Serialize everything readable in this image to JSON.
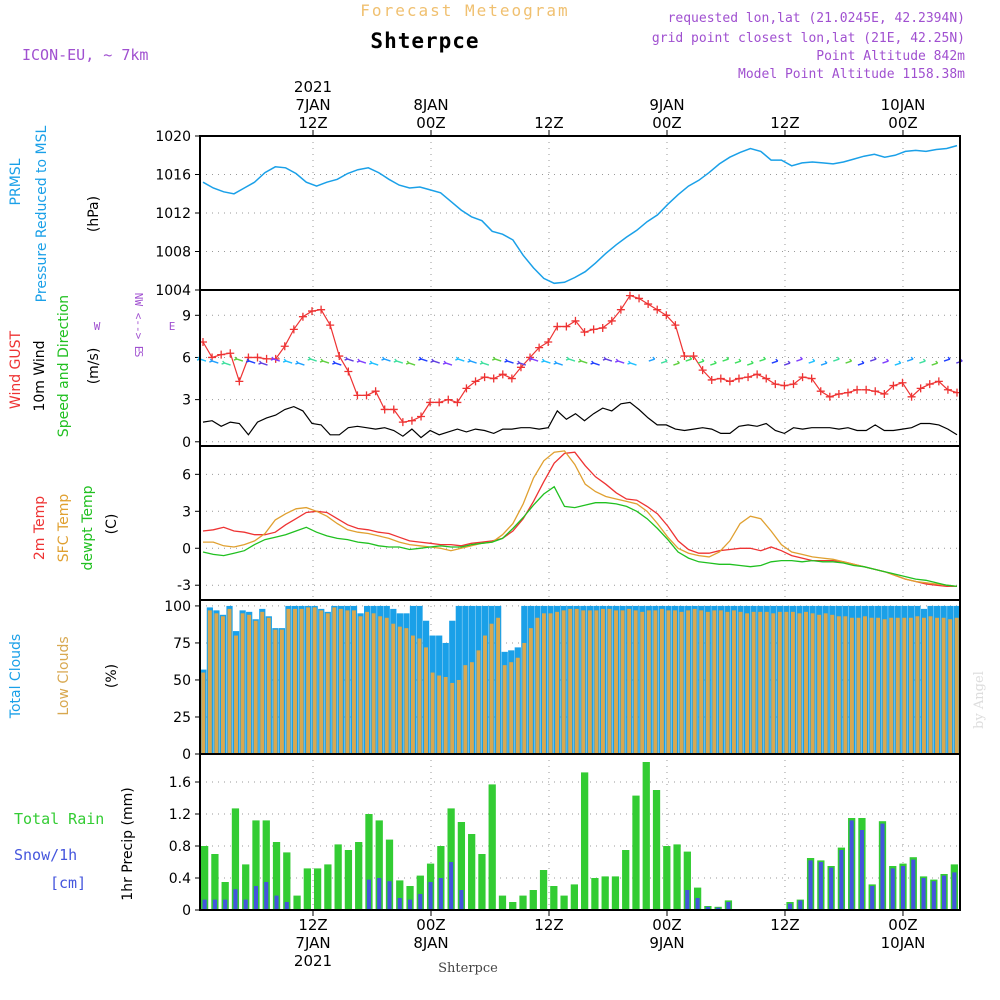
{
  "header": {
    "title": "Forecast Meteogram",
    "location": "Shterpce",
    "model": "ICON-EU, ~ 7km",
    "requested": "requested lon,lat (21.0245E, 42.2394N)",
    "gridpoint": "grid point closest lon,lat (21E, 42.25N)",
    "point_alt": "Point Altitude 842m",
    "model_alt": "Model Point Altitude 1158.38m",
    "footer_location": "Shterpce",
    "credit": "by Angel"
  },
  "colors": {
    "pressure": "#1aa0e8",
    "gust": "#ee3333",
    "wind": "#000000",
    "t2m": "#ee3333",
    "sfc": "#e0a030",
    "dew": "#20c020",
    "total_clouds": "#1aa0e8",
    "low_clouds": "#d8a850",
    "rain": "#33cc33",
    "snow": "#4455dd",
    "label_purple": "#a050d0"
  },
  "top_axis": [
    {
      "h": 0,
      "lines": [
        "2021",
        "7JAN",
        "12Z"
      ]
    },
    {
      "h": 12,
      "lines": [
        "8JAN",
        "00Z"
      ]
    },
    {
      "h": 24,
      "lines": [
        "12Z"
      ]
    },
    {
      "h": 36,
      "lines": [
        "9JAN",
        "00Z"
      ]
    },
    {
      "h": 48,
      "lines": [
        "12Z"
      ]
    },
    {
      "h": 60,
      "lines": [
        "10JAN",
        "00Z"
      ]
    }
  ],
  "bottom_axis": [
    {
      "h": 0,
      "lines": [
        "12Z",
        "7JAN",
        "2021"
      ]
    },
    {
      "h": 12,
      "lines": [
        "00Z",
        "8JAN"
      ]
    },
    {
      "h": 24,
      "lines": [
        "12Z"
      ]
    },
    {
      "h": 36,
      "lines": [
        "00Z",
        "9JAN"
      ]
    },
    {
      "h": 48,
      "lines": [
        "12Z"
      ]
    },
    {
      "h": 60,
      "lines": [
        "00Z",
        "10JAN"
      ]
    }
  ],
  "panel_labels": {
    "pressure": [
      "PRMSL",
      "Pressure Reduced to MSL",
      "(hPa)"
    ],
    "wind": [
      "Wind GUST",
      "10m Wind",
      "Speed and Direction",
      "(m/s)"
    ],
    "wind_compass": [
      "N",
      "<",
      "-",
      "-",
      ">",
      "S",
      "W <--> E",
      "W",
      "E"
    ],
    "temp": [
      "2m Temp",
      "SFC Temp",
      "dewpt Temp",
      "(C)"
    ],
    "clouds": [
      "Total Clouds",
      "Low Clouds",
      "(%)"
    ],
    "precip": [
      "Total Rain",
      "Snow/1h",
      "[cm]",
      "1hr Precip (mm)"
    ]
  },
  "chart_data": [
    {
      "type": "line",
      "title": "PRMSL Pressure Reduced to MSL",
      "ylabel": "(hPa)",
      "ylim": [
        1004,
        1020
      ],
      "yticks": [
        1004,
        1008,
        1012,
        1016,
        1020
      ],
      "x_hours_from_7JAN12Z_start": -11,
      "series": [
        {
          "name": "PRMSL",
          "values": [
            1015.2,
            1014.6,
            1014.2,
            1014.0,
            1014.6,
            1015.2,
            1016.2,
            1016.8,
            1016.7,
            1016.1,
            1015.2,
            1014.8,
            1015.2,
            1015.5,
            1016.1,
            1016.5,
            1016.7,
            1016.2,
            1015.5,
            1014.9,
            1014.6,
            1014.7,
            1014.4,
            1014.1,
            1013.2,
            1012.3,
            1011.6,
            1011.2,
            1010.1,
            1009.8,
            1009.2,
            1007.6,
            1006.3,
            1005.2,
            1004.7,
            1004.8,
            1005.3,
            1005.9,
            1006.8,
            1007.8,
            1008.7,
            1009.5,
            1010.2,
            1011.1,
            1011.8,
            1012.9,
            1013.9,
            1014.8,
            1015.4,
            1016.2,
            1017.1,
            1017.8,
            1018.3,
            1018.7,
            1018.4,
            1017.5,
            1017.5,
            1016.9,
            1017.2,
            1017.3,
            1017.2,
            1017.1,
            1017.3,
            1017.6,
            1017.9,
            1018.1,
            1017.8,
            1018.0,
            1018.4,
            1018.5,
            1018.4,
            1018.6,
            1018.7,
            1019.0
          ]
        }
      ]
    },
    {
      "type": "line",
      "title": "Wind GUST / 10m Wind Speed and Direction",
      "ylabel": "(m/s)",
      "ylim": [
        -0.3,
        10.8
      ],
      "yticks": [
        0,
        3,
        6,
        9
      ],
      "series": [
        {
          "name": "Wind GUST",
          "values": [
            7.1,
            6.0,
            6.2,
            6.3,
            4.3,
            6.0,
            6.0,
            5.9,
            5.9,
            6.8,
            8.0,
            8.9,
            9.3,
            9.4,
            8.3,
            6.1,
            5.0,
            3.3,
            3.3,
            3.6,
            2.3,
            2.3,
            1.4,
            1.5,
            1.8,
            2.8,
            2.8,
            3.0,
            2.8,
            3.8,
            4.3,
            4.6,
            4.5,
            4.8,
            4.5,
            5.3,
            6.0,
            6.7,
            7.1,
            8.2,
            8.2,
            8.6,
            7.8,
            8.0,
            8.1,
            8.6,
            9.4,
            10.4,
            10.2,
            9.8,
            9.4,
            9.0,
            8.3,
            6.1,
            6.1,
            5.1,
            4.4,
            4.5,
            4.3,
            4.5,
            4.6,
            4.8,
            4.5,
            4.1,
            4.0,
            4.1,
            4.6,
            4.5,
            3.6,
            3.2,
            3.4,
            3.5,
            3.7,
            3.7,
            3.6,
            3.4,
            4.0,
            4.2,
            3.2,
            3.8,
            4.1,
            4.3,
            3.7,
            3.5
          ]
        },
        {
          "name": "10m Wind",
          "values": [
            1.4,
            1.5,
            1.1,
            1.4,
            1.3,
            0.5,
            1.4,
            1.7,
            1.9,
            2.3,
            2.5,
            2.2,
            1.3,
            1.2,
            0.5,
            0.5,
            1.0,
            1.1,
            1.0,
            0.9,
            1.0,
            0.8,
            0.4,
            0.9,
            0.3,
            0.8,
            0.5,
            0.7,
            0.9,
            0.7,
            0.9,
            0.8,
            0.6,
            0.9,
            0.9,
            1.0,
            1.0,
            0.9,
            1.0,
            2.2,
            1.6,
            2.0,
            1.5,
            2.0,
            2.4,
            2.2,
            2.7,
            2.8,
            2.3,
            1.7,
            1.2,
            1.2,
            0.9,
            0.8,
            0.9,
            1.0,
            0.9,
            0.6,
            0.6,
            1.1,
            1.2,
            1.1,
            1.3,
            0.8,
            0.6,
            1.0,
            0.9,
            1.0,
            1.0,
            1.0,
            0.9,
            1.0,
            0.8,
            0.8,
            1.2,
            0.8,
            0.8,
            0.9,
            1.0,
            1.3,
            1.3,
            1.2,
            0.9,
            0.5
          ]
        }
      ]
    },
    {
      "type": "line",
      "title": "2m Temp / SFC Temp / dewpt Temp",
      "ylabel": "(C)",
      "ylim": [
        -4.2,
        8.3
      ],
      "yticks": [
        -3,
        0,
        3,
        6
      ],
      "series": [
        {
          "name": "2m Temp",
          "values": [
            1.4,
            1.5,
            1.7,
            1.4,
            1.3,
            1.1,
            1.1,
            1.3,
            1.9,
            2.4,
            2.9,
            3.0,
            2.9,
            2.4,
            1.9,
            1.6,
            1.5,
            1.3,
            1.2,
            0.9,
            0.6,
            0.5,
            0.4,
            0.3,
            0.3,
            0.2,
            0.4,
            0.5,
            0.6,
            0.8,
            1.4,
            2.4,
            3.8,
            5.4,
            6.9,
            7.7,
            7.8,
            6.7,
            5.8,
            5.2,
            4.5,
            4.0,
            3.9,
            3.4,
            2.8,
            1.8,
            0.6,
            -0.1,
            -0.4,
            -0.4,
            -0.2,
            -0.1,
            0.0,
            0.0,
            -0.2,
            0.1,
            -0.2,
            -0.6,
            -0.8,
            -1.0,
            -1.0,
            -1.0,
            -1.1,
            -1.3,
            -1.5,
            -1.7,
            -1.9,
            -2.2,
            -2.5,
            -2.7,
            -2.9,
            -3.0,
            -3.1,
            -3.1
          ]
        },
        {
          "name": "SFC Temp",
          "values": [
            0.5,
            0.5,
            0.2,
            0.1,
            0.3,
            0.6,
            1.2,
            2.3,
            2.8,
            3.2,
            3.3,
            3.0,
            2.6,
            2.0,
            1.5,
            1.3,
            1.2,
            1.0,
            0.8,
            0.5,
            0.3,
            0.2,
            0.1,
            0.0,
            -0.2,
            0.0,
            0.2,
            0.4,
            0.5,
            1.1,
            2.0,
            3.6,
            5.7,
            7.1,
            7.8,
            7.9,
            6.8,
            5.2,
            4.6,
            4.2,
            4.0,
            3.8,
            3.6,
            3.0,
            2.0,
            0.9,
            0.0,
            -0.4,
            -0.6,
            -0.7,
            -0.3,
            0.6,
            2.0,
            2.6,
            2.4,
            1.4,
            0.3,
            -0.3,
            -0.5,
            -0.7,
            -0.8,
            -0.9,
            -1.1,
            -1.3,
            -1.5,
            -1.7,
            -1.9,
            -2.2,
            -2.5,
            -2.7,
            -2.8,
            -2.9,
            -3.0,
            -3.1
          ]
        },
        {
          "name": "dewpt Temp",
          "values": [
            -0.3,
            -0.5,
            -0.6,
            -0.4,
            -0.2,
            0.3,
            0.7,
            0.9,
            1.1,
            1.4,
            1.7,
            1.3,
            1.0,
            0.8,
            0.7,
            0.5,
            0.4,
            0.2,
            0.1,
            0.1,
            -0.1,
            0.0,
            0.1,
            0.2,
            0.1,
            0.1,
            0.3,
            0.4,
            0.5,
            0.8,
            1.6,
            2.5,
            3.5,
            4.4,
            5.0,
            3.4,
            3.3,
            3.5,
            3.7,
            3.7,
            3.6,
            3.4,
            3.0,
            2.4,
            1.6,
            0.7,
            -0.3,
            -0.8,
            -1.1,
            -1.2,
            -1.3,
            -1.3,
            -1.4,
            -1.5,
            -1.4,
            -1.1,
            -1.0,
            -1.0,
            -1.1,
            -1.0,
            -1.1,
            -1.1,
            -1.2,
            -1.4,
            -1.5,
            -1.7,
            -1.9,
            -2.1,
            -2.3,
            -2.5,
            -2.6,
            -2.8,
            -3.0,
            -3.1
          ]
        }
      ]
    },
    {
      "type": "bar",
      "title": "Total Clouds / Low Clouds",
      "ylabel": "(%)",
      "ylim": [
        0,
        104
      ],
      "yticks": [
        0,
        25,
        50,
        75,
        100
      ],
      "series": [
        {
          "name": "Total Clouds",
          "values": [
            57,
            99,
            97,
            94,
            100,
            83,
            97,
            96,
            91,
            98,
            93,
            85,
            85,
            100,
            100,
            100,
            100,
            100,
            98,
            96,
            100,
            100,
            100,
            100,
            95,
            100,
            100,
            100,
            100,
            98,
            95,
            95,
            100,
            100,
            90,
            80,
            80,
            75,
            90,
            100,
            100,
            100,
            100,
            100,
            100,
            100,
            69,
            70,
            72,
            100,
            100,
            100,
            100,
            100,
            100,
            100,
            100,
            100,
            100,
            100,
            100,
            100,
            100,
            100,
            100,
            100,
            100,
            100,
            100,
            100,
            100,
            100,
            100,
            100,
            100,
            100,
            100,
            100,
            100,
            100,
            100,
            100,
            100,
            100,
            100,
            100,
            100,
            100,
            100,
            100,
            100,
            100,
            100,
            100,
            100,
            100,
            100,
            100,
            100,
            100,
            100,
            100,
            100,
            100,
            100,
            100,
            100,
            100,
            100,
            100,
            98,
            100,
            100,
            100,
            100,
            100
          ]
        },
        {
          "name": "Low Clouds",
          "values": [
            55,
            97,
            95,
            93,
            98,
            80,
            95,
            94,
            90,
            96,
            92,
            84,
            84,
            98,
            98,
            98,
            99,
            99,
            97,
            95,
            99,
            98,
            97,
            97,
            93,
            96,
            95,
            93,
            92,
            88,
            86,
            85,
            80,
            78,
            72,
            55,
            53,
            52,
            48,
            50,
            60,
            62,
            70,
            80,
            88,
            92,
            60,
            62,
            65,
            75,
            85,
            92,
            95,
            95,
            96,
            97,
            98,
            98,
            97,
            97,
            97,
            98,
            98,
            97,
            97,
            98,
            97,
            96,
            97,
            97,
            98,
            97,
            97,
            96,
            97,
            98,
            97,
            96,
            97,
            97,
            96,
            97,
            96,
            95,
            96,
            96,
            96,
            95,
            96,
            96,
            96,
            95,
            96,
            95,
            94,
            95,
            94,
            93,
            93,
            92,
            92,
            93,
            92,
            92,
            91,
            92,
            92,
            92,
            92,
            93,
            92,
            93,
            92,
            92,
            91,
            92
          ]
        }
      ]
    },
    {
      "type": "bar",
      "title": "Total Rain / Snow/1h",
      "ylabel": "1hr Precip (mm)",
      "ylim": [
        0,
        1.95
      ],
      "yticks": [
        0,
        0.4,
        0.8,
        1.2,
        1.6
      ],
      "series": [
        {
          "name": "Total Rain",
          "values": [
            0.8,
            0.7,
            0.35,
            1.27,
            0.57,
            1.12,
            1.12,
            0.85,
            0.72,
            0.18,
            0.52,
            0.52,
            0.57,
            0.82,
            0.75,
            0.85,
            1.2,
            1.12,
            0.88,
            0.37,
            0.3,
            0.43,
            0.58,
            0.8,
            1.27,
            1.1,
            0.95,
            0.7,
            1.57,
            0.18,
            0.1,
            0.18,
            0.25,
            0.5,
            0.3,
            0.18,
            0.32,
            1.72,
            0.4,
            0.42,
            0.42,
            0.75,
            1.43,
            1.85,
            1.5,
            0.8,
            0.82,
            0.73,
            0.28,
            0.05,
            0.04,
            0.12,
            0.01,
            0.01,
            0.01,
            0.01,
            0.0,
            0.1,
            0.13,
            0.65,
            0.62,
            0.55,
            0.78,
            1.15,
            1.15,
            0.32,
            1.11,
            0.55,
            0.58,
            0.66,
            0.42,
            0.38,
            0.45,
            0.57
          ]
        },
        {
          "name": "Snow/1h",
          "values": [
            0.13,
            0.13,
            0.13,
            0.26,
            0.13,
            0.3,
            0.35,
            0.18,
            0.1,
            0.0,
            0.0,
            0.0,
            0.0,
            0.0,
            0.0,
            0.0,
            0.38,
            0.4,
            0.36,
            0.15,
            0.13,
            0.2,
            0.35,
            0.4,
            0.6,
            0.25,
            0.0,
            0.0,
            0.0,
            0.0,
            0.0,
            0.0,
            0.0,
            0.0,
            0.0,
            0.0,
            0.0,
            0.0,
            0.0,
            0.0,
            0.0,
            0.0,
            0.0,
            0.0,
            0.0,
            0.0,
            0.0,
            0.25,
            0.15,
            0.04,
            0.03,
            0.1,
            0.01,
            0.01,
            0.01,
            0.01,
            0.0,
            0.08,
            0.12,
            0.62,
            0.6,
            0.53,
            0.75,
            1.12,
            1.0,
            0.3,
            1.08,
            0.52,
            0.55,
            0.63,
            0.4,
            0.36,
            0.43,
            0.47
          ]
        }
      ]
    }
  ]
}
